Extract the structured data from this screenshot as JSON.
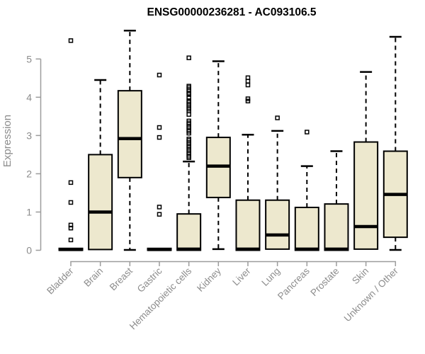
{
  "header": {
    "title": "ENSG00000236281 - AC093106.5"
  },
  "chart_data": {
    "type": "boxplot",
    "title": "ENSG00000236281 - AC093106.5",
    "xlabel": "",
    "ylabel": "Expression",
    "ylim": [
      0,
      5
    ],
    "yticks": [
      0,
      1,
      2,
      3,
      4,
      5
    ],
    "grid": false,
    "legend": "none",
    "box_fill": "#EDE8CE",
    "box_stroke": "#000000",
    "axis_color": "#9c9c9c",
    "label_color": "#8c8c8c",
    "categories": [
      "Bladder",
      "Brain",
      "Breast",
      "Gastric",
      "Hematopoietic cells",
      "Kidney",
      "Liver",
      "Lung",
      "Pancreas",
      "Prostate",
      "Skin",
      "Unknown / Other"
    ],
    "series": [
      {
        "name": "Bladder",
        "low": 0,
        "q1": 0,
        "median": 0.02,
        "q3": 0.05,
        "high": 0.05,
        "outliers": [
          5.48,
          1.77,
          1.25,
          0.66,
          0.58,
          0.27
        ]
      },
      {
        "name": "Brain",
        "low": 0,
        "q1": 0.02,
        "median": 1.0,
        "q3": 2.5,
        "high": 4.45,
        "outliers": []
      },
      {
        "name": "Breast",
        "low": 0.01,
        "q1": 1.9,
        "median": 2.92,
        "q3": 4.17,
        "high": 5.74,
        "outliers": []
      },
      {
        "name": "Gastric",
        "low": 0,
        "q1": 0,
        "median": 0.02,
        "q3": 0.05,
        "high": 0.05,
        "outliers": [
          4.58,
          3.21,
          2.95,
          1.13,
          0.94
        ]
      },
      {
        "name": "Hematopoietic cells",
        "low": 0,
        "q1": 0,
        "median": 0.03,
        "q3": 0.95,
        "high": 2.32,
        "outliers": [
          5.03,
          4.29,
          4.25,
          4.2,
          4.16,
          4.11,
          4.07,
          3.99,
          3.91,
          3.87,
          3.82,
          3.78,
          3.73,
          3.69,
          3.64,
          3.55,
          3.38,
          3.33,
          3.29,
          3.24,
          3.2,
          3.15,
          3.11,
          3.06,
          2.91,
          2.87,
          2.82,
          2.78,
          2.73,
          2.69,
          2.64,
          2.6,
          2.55,
          2.51,
          2.46,
          2.42
        ]
      },
      {
        "name": "Kidney",
        "low": 0.03,
        "q1": 1.38,
        "median": 2.2,
        "q3": 2.95,
        "high": 4.94,
        "outliers": []
      },
      {
        "name": "Liver",
        "low": 0,
        "q1": 0,
        "median": 0.03,
        "q3": 1.31,
        "high": 3.02,
        "outliers": [
          4.51,
          4.42,
          4.32,
          3.96,
          3.9
        ]
      },
      {
        "name": "Lung",
        "low": 0,
        "q1": 0.03,
        "median": 0.4,
        "q3": 1.31,
        "high": 3.12,
        "outliers": [
          3.46
        ]
      },
      {
        "name": "Pancreas",
        "low": 0,
        "q1": 0,
        "median": 0.03,
        "q3": 1.12,
        "high": 2.2,
        "outliers": [
          3.09
        ]
      },
      {
        "name": "Prostate",
        "low": 0,
        "q1": 0,
        "median": 0.03,
        "q3": 1.21,
        "high": 2.59,
        "outliers": []
      },
      {
        "name": "Skin",
        "low": 0,
        "q1": 0.03,
        "median": 0.62,
        "q3": 2.83,
        "high": 4.66,
        "outliers": []
      },
      {
        "name": "Unknown / Other",
        "low": 0.01,
        "q1": 0.34,
        "median": 1.46,
        "q3": 2.59,
        "high": 5.58,
        "outliers": []
      }
    ]
  }
}
